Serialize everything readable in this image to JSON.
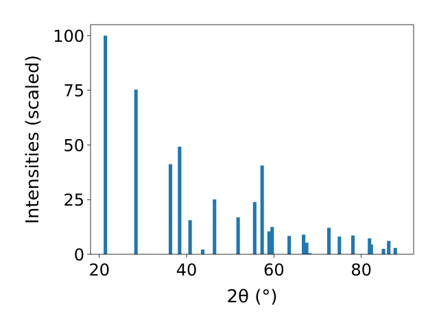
{
  "chart_data": {
    "type": "bar",
    "xlabel": "2θ (°)",
    "ylabel": "Intensities (scaled)",
    "xlim": [
      18,
      92
    ],
    "ylim": [
      0,
      105
    ],
    "xticks": [
      20,
      40,
      60,
      80
    ],
    "yticks": [
      0,
      25,
      50,
      75,
      100
    ],
    "grid": false,
    "bar_color": "#1f77b4",
    "bar_width": 0.8,
    "series": [
      {
        "x": [
          21.4,
          28.4,
          36.3,
          38.4,
          40.8,
          43.7,
          46.4,
          51.8,
          55.6,
          57.3,
          58.9,
          59.6,
          63.5,
          66.8,
          67.5,
          68.2,
          72.6,
          75.0,
          78.1,
          81.9,
          82.3,
          85.1,
          86.3,
          87.8
        ],
        "values": [
          100,
          75.3,
          41.2,
          49.2,
          15.6,
          2.2,
          25.1,
          16.9,
          23.9,
          40.6,
          10.5,
          12.5,
          8.4,
          9.0,
          5.3,
          0.5,
          12.1,
          8.1,
          8.6,
          7.3,
          4.5,
          2.5,
          6.1,
          2.9
        ]
      }
    ]
  }
}
